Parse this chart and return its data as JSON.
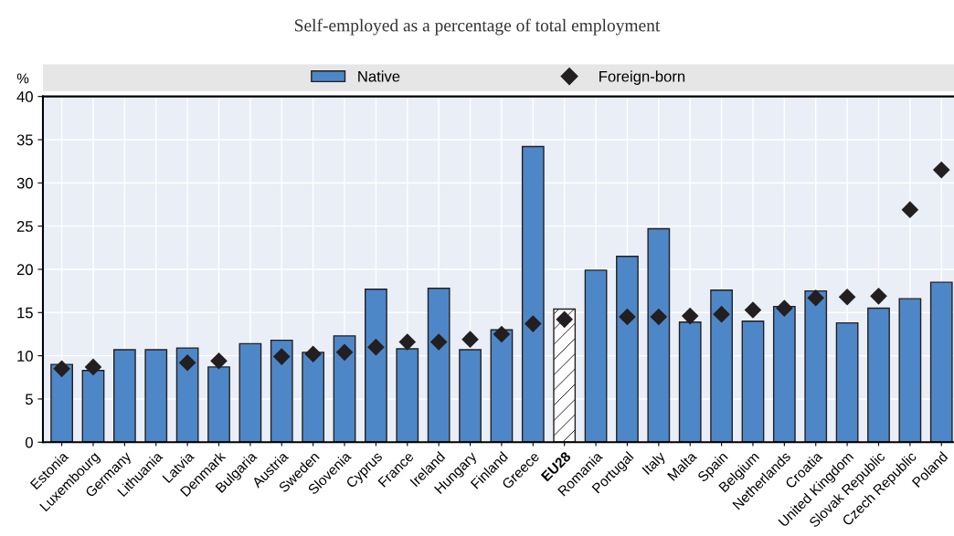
{
  "chart_data": {
    "type": "bar",
    "subtitle": "Self-employed as a percentage of total employment",
    "ylabel": "%",
    "categories": [
      "Estonia",
      "Luxembourg",
      "Germany",
      "Lithuania",
      "Latvia",
      "Denmark",
      "Bulgaria",
      "Austria",
      "Sweden",
      "Slovenia",
      "Cyprus",
      "France",
      "Ireland",
      "Hungary",
      "Finland",
      "Greece",
      "EU28",
      "Romania",
      "Portugal",
      "Italy",
      "Malta",
      "Spain",
      "Belgium",
      "Netherlands",
      "Croatia",
      "United Kingdom",
      "Slovak Republic",
      "Czech Republic",
      "Poland"
    ],
    "series": [
      {
        "name": "Native",
        "type": "bar",
        "color": "#4e87c7",
        "colors": [
          "#4e87c7",
          "#4e87c7",
          "#4e87c7",
          "#4e87c7",
          "#4e87c7",
          "#4e87c7",
          "#4e87c7",
          "#4e87c7",
          "#4e87c7",
          "#4e87c7",
          "#4e87c7",
          "#4e87c7",
          "#4e87c7",
          "#4e87c7",
          "#4e87c7",
          "#4e87c7",
          "#ffffff",
          "#4e87c7",
          "#4e87c7",
          "#4e87c7",
          "#4e87c7",
          "#4e87c7",
          "#4e87c7",
          "#4e87c7",
          "#4e87c7",
          "#4e87c7",
          "#4e87c7",
          "#4e87c7",
          "#4e87c7"
        ],
        "values": [
          9.0,
          8.3,
          10.7,
          10.7,
          10.9,
          8.7,
          11.4,
          11.8,
          10.4,
          12.3,
          17.7,
          10.8,
          17.8,
          10.7,
          13.0,
          34.2,
          15.4,
          19.9,
          21.5,
          24.7,
          13.9,
          17.6,
          14.0,
          15.7,
          17.5,
          13.8,
          15.5,
          16.6,
          18.5
        ]
      },
      {
        "name": "Foreign-born",
        "type": "scatter",
        "color": "#231f20",
        "marker": "diamond",
        "values": [
          8.5,
          8.7,
          null,
          null,
          9.2,
          9.4,
          null,
          9.9,
          10.2,
          10.4,
          11.0,
          11.6,
          11.6,
          11.9,
          12.5,
          13.7,
          14.2,
          null,
          14.5,
          14.5,
          14.6,
          14.8,
          15.3,
          15.5,
          16.7,
          16.8,
          16.9,
          26.9,
          31.5
        ]
      }
    ],
    "ylim": [
      0,
      40
    ],
    "yticks": [
      0,
      5,
      10,
      15,
      20,
      25,
      30,
      35,
      40
    ],
    "grid": true,
    "legend": "top"
  }
}
